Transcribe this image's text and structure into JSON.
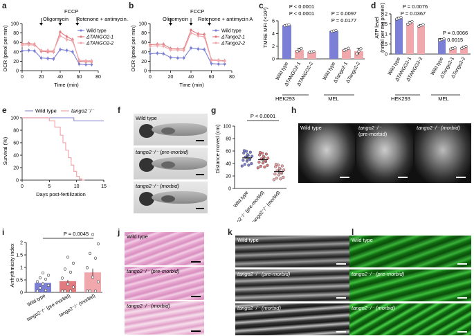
{
  "panels": {
    "a": {
      "label": "a",
      "ylabel": "OCR (pmol per min)",
      "xlabel": "Time (min)",
      "ann": {
        "oligo": "Oligomycin",
        "fccp": "FCCP",
        "rot": "Rotenone + antimycin A"
      },
      "legend": [
        "Wild type",
        "ΔTANGO2-1",
        "ΔTANGO2-2"
      ]
    },
    "b": {
      "label": "b",
      "ylabel": "OCR (pmol per min)",
      "xlabel": "Time (min)",
      "ann": {
        "oligo": "Oligomycin",
        "fccp": "FCCP",
        "rot": "Rotenone + antimycin A"
      },
      "legend": [
        "Wild type",
        "ΔTango2-1",
        "ΔTango2-2"
      ]
    },
    "c": {
      "label": "c",
      "ylabel": "TMRE MFI (×10³)",
      "p1": "P < 0.0001",
      "p2": "P < 0.0001",
      "p3": "P = 0.0097",
      "p4": "P = 0.0177",
      "groups": [
        "HEK293",
        "MEL"
      ],
      "ticks": [
        "Wild type",
        "ΔTANGO2-1",
        "ΔTANGO2-2",
        "Wild type",
        "ΔTango2-1",
        "ΔTango2-2"
      ]
    },
    "d": {
      "label": "d",
      "ylabel": "ATP level",
      "ylabel2": "(nmol per mg protein)",
      "p1": "P = 0.0076",
      "p2": "P = 0.0367",
      "p3": "P = 0.0066",
      "p4": "P = 0.0015",
      "groups": [
        "HEK293",
        "MEL"
      ],
      "ticks": [
        "Wild type",
        "ΔTANGO2-1",
        "ΔTANGO2-2",
        "Wild type",
        "ΔTango2-1",
        "ΔTango2-2"
      ]
    },
    "e": {
      "label": "e",
      "ylabel": "Survival (%)",
      "xlabel": "Days post-fertilization",
      "legend": [
        "Wild type",
        "tango2⁻/⁻"
      ]
    },
    "f": {
      "label": "f",
      "captions": [
        "Wild type",
        "tango2⁻/⁻ (pre-morbid)",
        "tango2⁻/⁻ (morbid)"
      ]
    },
    "g": {
      "label": "g",
      "ylabel": "Distance moved (cm)",
      "p1": "P < 0.0001",
      "ticks": [
        "Wild type",
        "tango2⁻/⁻ (pre-morbid)",
        "tango2⁻/⁻ (morbid)"
      ]
    },
    "h": {
      "label": "h",
      "captions": [
        "Wild type",
        "tango2⁻/⁻",
        "(pre-morbid)",
        "tango2⁻/⁻ (morbid)"
      ]
    },
    "i": {
      "label": "i",
      "ylabel": "Arrhythmicity index",
      "p1": "P = 0.0045",
      "ticks": [
        "Wild type",
        "tango2⁻/⁻ (pre-morbid)",
        "tango2⁻/⁻ (morbid)"
      ]
    },
    "j": {
      "label": "j",
      "captions": [
        "Wild type",
        "tango2⁻/⁻ (pre-morbid)",
        "tango2⁻/⁻ (morbid)"
      ]
    },
    "k": {
      "label": "k",
      "captions": [
        "Wild type",
        "tango2⁻/⁻ (pre-morbid)",
        "tango2⁻/⁻ (morbid)"
      ]
    },
    "l": {
      "label": "l",
      "captions": [
        "Wild type",
        "tango2⁻/⁻ (pre-morbid)",
        "tango2⁻/⁻ (morbid)"
      ]
    }
  },
  "chart_data": [
    {
      "id": "a",
      "type": "line",
      "x": [
        0,
        7,
        13,
        20,
        27,
        33,
        40,
        47,
        53,
        60,
        67,
        73
      ],
      "xlim": [
        0,
        80
      ],
      "ylim": [
        0,
        100
      ],
      "xticks": [
        0,
        20,
        40,
        60,
        80
      ],
      "yticks": [
        0,
        20,
        40,
        60,
        80,
        100
      ],
      "series": [
        {
          "name": "Wild type",
          "color": "#7b7fd6",
          "values": [
            42,
            43,
            42,
            27,
            26,
            25,
            45,
            43,
            40,
            14,
            13,
            13
          ]
        },
        {
          "name": "ΔTANGO2-1",
          "color": "#e07b80",
          "values": [
            57,
            58,
            56,
            41,
            40,
            40,
            82,
            72,
            66,
            20,
            19,
            19
          ]
        },
        {
          "name": "ΔTANGO2-2",
          "color": "#f0a8ac",
          "values": [
            54,
            55,
            54,
            43,
            43,
            42,
            74,
            66,
            63,
            22,
            21,
            21
          ]
        }
      ]
    },
    {
      "id": "b",
      "type": "line",
      "x": [
        0,
        7,
        13,
        20,
        27,
        33,
        40,
        47,
        53,
        60,
        67,
        73
      ],
      "xlim": [
        0,
        80
      ],
      "ylim": [
        0,
        100
      ],
      "xticks": [
        0,
        20,
        40,
        60,
        80
      ],
      "yticks": [
        0,
        20,
        40,
        60,
        80,
        100
      ],
      "series": [
        {
          "name": "Wild type",
          "color": "#7b7fd6",
          "values": [
            36,
            37,
            36,
            28,
            27,
            27,
            48,
            46,
            45,
            15,
            14,
            14
          ]
        },
        {
          "name": "ΔTango2-1",
          "color": "#e07b80",
          "values": [
            55,
            56,
            56,
            47,
            46,
            46,
            86,
            78,
            77,
            23,
            22,
            21
          ]
        },
        {
          "name": "ΔTango2-2",
          "color": "#f0a8ac",
          "values": [
            52,
            53,
            52,
            44,
            44,
            43,
            80,
            74,
            72,
            22,
            21,
            20
          ]
        }
      ]
    },
    {
      "id": "c",
      "type": "bar",
      "ylim": [
        0,
        6
      ],
      "yticks": [
        0,
        2,
        4,
        6
      ],
      "categories": [
        "Wild type",
        "ΔTANGO2-1",
        "ΔTANGO2-2",
        "Wild type",
        "ΔTango2-1",
        "ΔTango2-2"
      ],
      "values": [
        5.3,
        1.4,
        1.1,
        4.4,
        1.5,
        1.2
      ],
      "errors": [
        0.1,
        0.3,
        0.1,
        0.1,
        0.2,
        0.5
      ],
      "colors": [
        "#7b7fd6",
        "#f0a8ac",
        "#f0a8ac",
        "#7b7fd6",
        "#f0a8ac",
        "#f0a8ac"
      ]
    },
    {
      "id": "d",
      "type": "bar",
      "ylim": [
        0,
        2.0
      ],
      "yticks": [
        0,
        0.5,
        1.0,
        1.5,
        2.0
      ],
      "categories": [
        "Wild type",
        "ΔTANGO2-1",
        "ΔTANGO2-2",
        "Wild type",
        "ΔTango2-1",
        "ΔTango2-2"
      ],
      "values": [
        1.78,
        1.55,
        1.42,
        0.72,
        0.28,
        0.33
      ],
      "errors": [
        0.05,
        0.08,
        0.05,
        0.05,
        0.04,
        0.06
      ],
      "colors": [
        "#7b7fd6",
        "#f0a8ac",
        "#f0a8ac",
        "#7b7fd6",
        "#f0a8ac",
        "#f0a8ac"
      ]
    },
    {
      "id": "e",
      "type": "line",
      "xlim": [
        0,
        15
      ],
      "ylim": [
        0,
        100
      ],
      "xticks": [
        0,
        5,
        10,
        15
      ],
      "yticks": [
        0,
        20,
        40,
        60,
        80,
        100
      ],
      "series": [
        {
          "name": "Wild type",
          "color": "#9a9ad8",
          "x": [
            0,
            9.5,
            9.5,
            15
          ],
          "values": [
            100,
            100,
            95,
            95
          ]
        },
        {
          "name": "tango2⁻/⁻",
          "color": "#f0a8ac",
          "x": [
            0,
            5,
            5,
            6,
            6,
            7,
            7,
            7.5,
            7.5,
            8,
            8,
            8.5,
            8.5,
            9,
            9,
            9.5,
            9.5,
            10,
            10,
            10.5,
            10.5,
            11,
            11,
            11.5
          ],
          "values": [
            100,
            100,
            95,
            95,
            85,
            85,
            72,
            72,
            60,
            60,
            48,
            48,
            36,
            36,
            24,
            24,
            14,
            14,
            6,
            6,
            2,
            2,
            0,
            0
          ]
        }
      ]
    },
    {
      "id": "g",
      "type": "scatter",
      "ylim": [
        0,
        100
      ],
      "yticks": [
        0,
        20,
        40,
        60,
        80,
        100
      ],
      "categories": [
        "Wild type",
        "tango2⁻/⁻ (pre-morbid)",
        "tango2⁻/⁻ (morbid)"
      ],
      "values": [
        49,
        46,
        27
      ],
      "errors": [
        4,
        3,
        3
      ],
      "colors": [
        "#7b7fd6",
        "#e07b80",
        "#f0a8ac"
      ]
    },
    {
      "id": "i",
      "type": "bar",
      "ylim": [
        0,
        2.0
      ],
      "yticks": [
        0,
        0.5,
        1.0,
        1.5,
        2.0
      ],
      "categories": [
        "Wild type",
        "tango2⁻/⁻ (pre-morbid)",
        "tango2⁻/⁻ (morbid)"
      ],
      "values": [
        0.38,
        0.45,
        0.8
      ],
      "errors": [
        0.04,
        0.05,
        0.15
      ],
      "colors": [
        "#7b7fd6",
        "#e07b80",
        "#f0a8ac"
      ]
    }
  ]
}
